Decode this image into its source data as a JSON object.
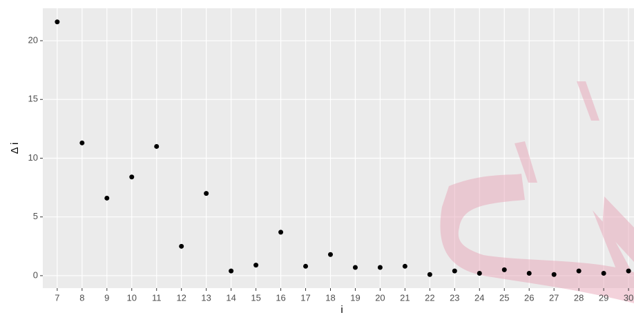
{
  "chart_data": {
    "type": "scatter",
    "x_label": "i",
    "y_label": "Δ i",
    "x": [
      7,
      8,
      9,
      10,
      11,
      12,
      13,
      14,
      15,
      16,
      17,
      18,
      19,
      20,
      21,
      22,
      23,
      24,
      25,
      26,
      27,
      28,
      29,
      30
    ],
    "values": [
      21.6,
      11.3,
      6.6,
      8.4,
      11.0,
      2.5,
      7.0,
      0.4,
      0.9,
      3.7,
      0.8,
      1.8,
      0.7,
      0.7,
      0.8,
      0.1,
      0.4,
      0.2,
      0.5,
      0.2,
      0.1,
      0.4,
      0.2,
      0.4
    ],
    "color": "#000000",
    "xlim": [
      6.42,
      30.22
    ],
    "ylim": [
      -1.06,
      22.76
    ],
    "xticks": [
      7,
      8,
      9,
      10,
      11,
      12,
      13,
      14,
      15,
      16,
      17,
      18,
      19,
      20,
      21,
      22,
      23,
      24,
      25,
      26,
      27,
      28,
      29,
      30
    ],
    "yticks": [
      0,
      5,
      10,
      15,
      20
    ],
    "grid": true
  }
}
